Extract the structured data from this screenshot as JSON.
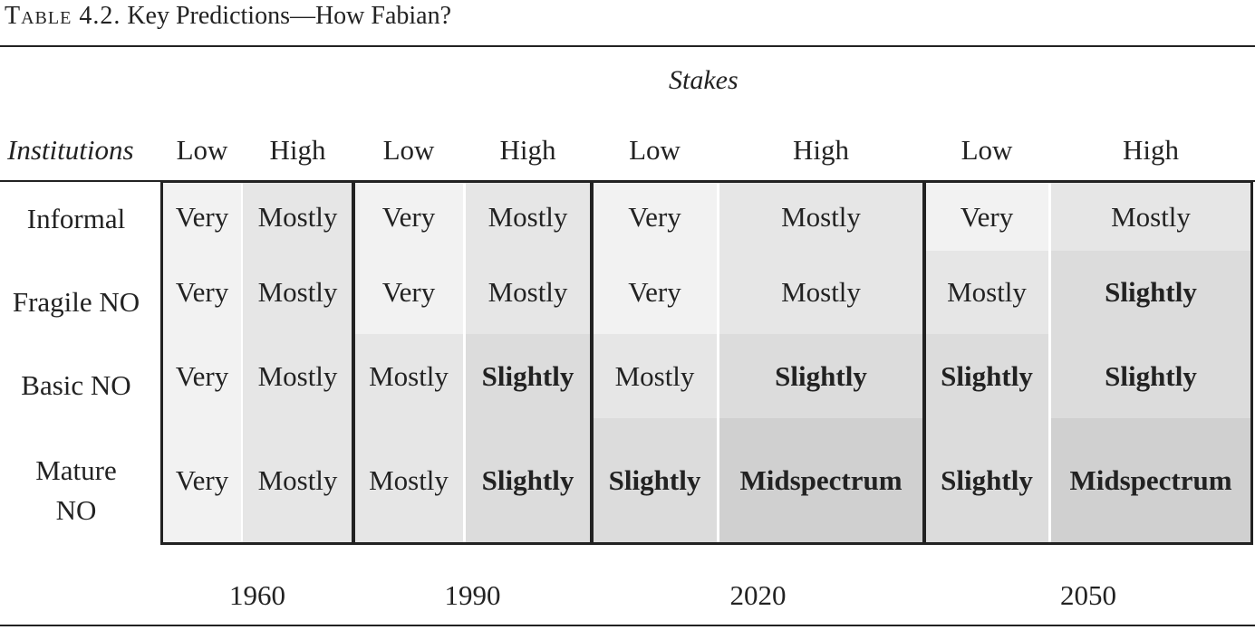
{
  "caption": {
    "label": "Table 4.2.",
    "title": "Key Predictions—How Fabian?"
  },
  "stakes_label": "Stakes",
  "institutions_label": "Institutions",
  "column_headers": [
    "Low",
    "High",
    "Low",
    "High",
    "Low",
    "High",
    "Low",
    "High"
  ],
  "years": [
    "1960",
    "1990",
    "2020",
    "2050"
  ],
  "rows": [
    {
      "label": "Informal",
      "cells": [
        "Very",
        "Mostly",
        "Very",
        "Mostly",
        "Very",
        "Mostly",
        "Very",
        "Mostly"
      ]
    },
    {
      "label": "Fragile NO",
      "cells": [
        "Very",
        "Mostly",
        "Very",
        "Mostly",
        "Very",
        "Mostly",
        "Mostly",
        "Slightly"
      ]
    },
    {
      "label": "Basic NO",
      "cells": [
        "Very",
        "Mostly",
        "Mostly",
        "Slightly",
        "Mostly",
        "Slightly",
        "Slightly",
        "Slightly"
      ]
    },
    {
      "label": "Mature NO",
      "cells": [
        "Very",
        "Mostly",
        "Mostly",
        "Slightly",
        "Slightly",
        "Midspectrum",
        "Slightly",
        "Midspectrum"
      ]
    }
  ],
  "shade_colors": {
    "Very": "#f2f2f2",
    "Mostly": "#e6e6e6",
    "Slightly": "#dcdcdc",
    "Midspectrum": "#d0d0d0"
  }
}
